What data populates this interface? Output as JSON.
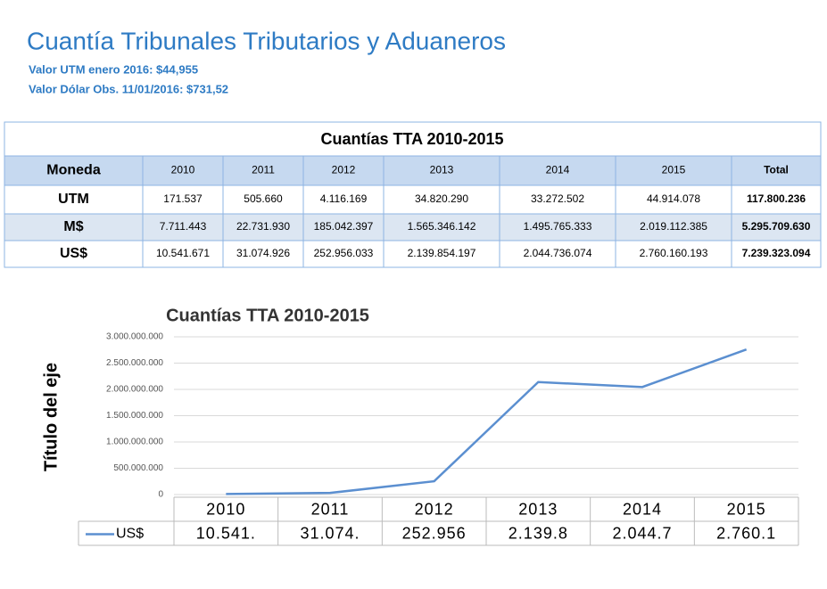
{
  "header": {
    "title": "Cuantía Tribunales Tributarios y Aduaneros",
    "subtitles": [
      "Valor UTM enero 2016: $44,955",
      "Valor Dólar Obs. 11/01/2016:  $731,52"
    ]
  },
  "table": {
    "caption": "Cuantías TTA 2010-2015",
    "header": [
      "Moneda",
      "2010",
      "2011",
      "2012",
      "2013",
      "2014",
      "2015",
      "Total"
    ],
    "rows": [
      [
        "UTM",
        "171.537",
        "505.660",
        "4.116.169",
        "34.820.290",
        "33.272.502",
        "44.914.078",
        "117.800.236"
      ],
      [
        "M$",
        "7.711.443",
        "22.731.930",
        "185.042.397",
        "1.565.346.142",
        "1.495.765.333",
        "2.019.112.385",
        "5.295.709.630"
      ],
      [
        "US$",
        "10.541.671",
        "31.074.926",
        "252.956.033",
        "2.139.854.197",
        "2.044.736.074",
        "2.760.160.193",
        "7.239.323.094"
      ]
    ]
  },
  "chart_data": {
    "type": "line",
    "title": "Cuantías TTA 2010-2015",
    "y_label": "Título del eje",
    "categories": [
      "2010",
      "2011",
      "2012",
      "2013",
      "2014",
      "2015"
    ],
    "series": [
      {
        "name": "US$",
        "color": "#5b8fd0",
        "values": [
          10541671,
          31074926,
          252956033,
          2139854197,
          2044736074,
          2760160193
        ],
        "value_labels": [
          "10.541.",
          "31.074.",
          "252.956",
          "2.139.8",
          "2.044.7",
          "2.760.1"
        ]
      }
    ],
    "ylim": [
      0,
      3000000000
    ],
    "yticks": [
      0,
      {
        "value": 500000000,
        "label": "500.000.000"
      },
      {
        "value": 1000000000,
        "label": "1.000.000.000"
      },
      {
        "value": 1500000000,
        "label": "1.500.000.000"
      },
      {
        "value": 2000000000,
        "label": "2.000.000.000"
      },
      {
        "value": 2500000000,
        "label": "2.500.000.000"
      },
      {
        "value": 3000000000,
        "label": "3.000.000.000"
      }
    ],
    "grid": true,
    "legend": "bottom-table"
  }
}
